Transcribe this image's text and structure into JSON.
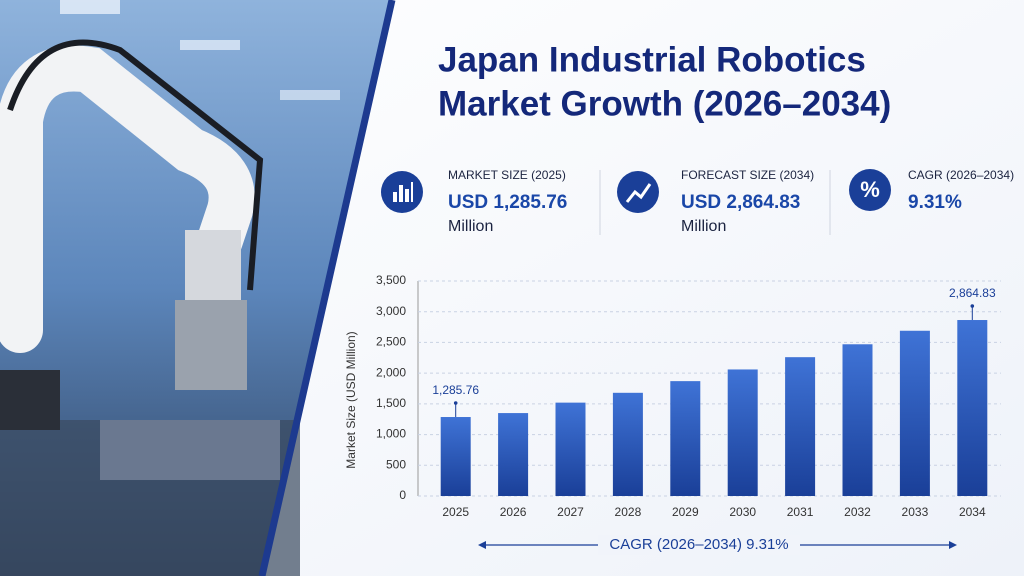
{
  "header": {
    "title_lines": [
      "Japan Industrial Robotics",
      "Market Growth (2026–2034)"
    ]
  },
  "kpis": [
    {
      "icon": null,
      "label": "MARKET SIZE (2025)",
      "value": "USD 1,285.76",
      "unit": "Million"
    },
    {
      "icon": null,
      "label": "FORECAST SIZE (2034)",
      "value": "USD 2,864.83",
      "unit": "Million"
    },
    {
      "icon": "%",
      "label": "CAGR (2026–2034)",
      "value": "9.31%",
      "unit": null
    }
  ],
  "chart_data": {
    "type": "bar",
    "y_label": "Market Size (USD Million)",
    "categories": [
      "2025",
      "2026",
      "2027",
      "2028",
      "2029",
      "2030",
      "2031",
      "2032",
      "2033",
      "2034"
    ],
    "values": [
      1285.76,
      1350,
      1520,
      1680,
      1870,
      2060,
      2260,
      2470,
      2690,
      2864.83
    ],
    "value_labels": [
      "1,285.76",
      null,
      null,
      null,
      null,
      null,
      null,
      null,
      null,
      "2,864.83"
    ],
    "color": "#1f4fb0",
    "ylim": [
      0,
      3500
    ],
    "yticks": [
      0,
      500,
      {
        "value": 1000,
        "label": "1,000"
      },
      {
        "value": 1500,
        "label": "1,500"
      },
      {
        "value": 2000,
        "label": "2,000"
      },
      {
        "value": 2500,
        "label": "2,500"
      },
      {
        "value": 3000,
        "label": "3,000"
      },
      {
        "value": 3500,
        "label": "3,500"
      }
    ],
    "grid": true,
    "annotation": "CAGR (2026–2034) 9.31%"
  }
}
